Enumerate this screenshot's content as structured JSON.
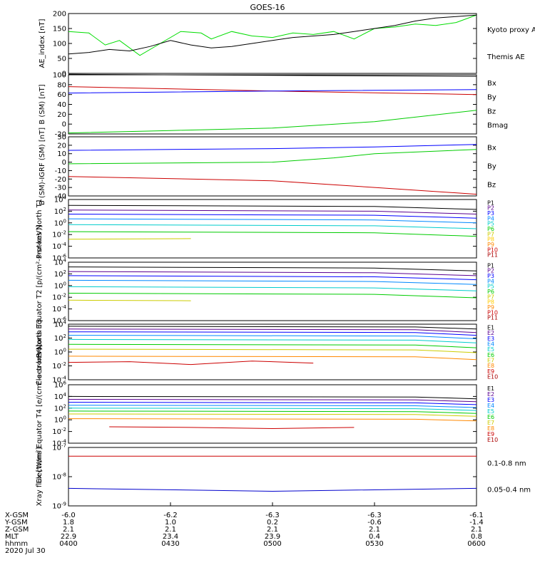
{
  "title": "GOES-16",
  "footer": {
    "rows": [
      {
        "label": "X-GSM",
        "values": [
          "-6.0",
          "-6.2",
          "-6.3",
          "-6.3",
          "-6.1"
        ]
      },
      {
        "label": "Y-GSM",
        "values": [
          "1.8",
          "1.0",
          "0.2",
          "-0.6",
          "-1.4"
        ]
      },
      {
        "label": "Z-GSM",
        "values": [
          "2.1",
          "2.1",
          "2.1",
          "2.1",
          "2.1"
        ]
      },
      {
        "label": "MLT",
        "values": [
          "22.9",
          "23.4",
          "23.9",
          "0.4",
          "0.8"
        ]
      },
      {
        "label": "hhmm",
        "values": [
          "0400",
          "0430",
          "0500",
          "0530",
          "0600"
        ]
      }
    ],
    "date": "2020 Jul 30"
  },
  "chart_data": [
    {
      "type": "line",
      "ylabel": "AE_index [nT]",
      "ylim": [
        0,
        200
      ],
      "yticks": [
        "0",
        "50",
        "100",
        "150",
        "200"
      ],
      "legend": [
        {
          "label": "Kyoto proxy AE",
          "color": "#00dd00"
        },
        {
          "label": "Themis AE",
          "color": "#000000"
        }
      ],
      "series": [
        {
          "name": "Kyoto proxy AE",
          "color": "#00dd00",
          "x": [
            0,
            10,
            18,
            25,
            35,
            45,
            55,
            65,
            70,
            80,
            90,
            100,
            110,
            120,
            130,
            140,
            150,
            160,
            170,
            180,
            190,
            200
          ],
          "y": [
            140,
            135,
            95,
            110,
            60,
            100,
            140,
            135,
            115,
            140,
            125,
            120,
            135,
            130,
            140,
            115,
            150,
            155,
            165,
            160,
            170,
            195
          ]
        },
        {
          "name": "Themis AE",
          "color": "#000000",
          "x": [
            0,
            10,
            20,
            30,
            40,
            50,
            60,
            70,
            80,
            90,
            100,
            110,
            120,
            130,
            140,
            150,
            160,
            170,
            180,
            190,
            200
          ],
          "y": [
            65,
            70,
            80,
            75,
            90,
            110,
            95,
            85,
            90,
            100,
            110,
            120,
            125,
            130,
            140,
            150,
            160,
            175,
            185,
            190,
            195
          ]
        }
      ]
    },
    {
      "type": "line",
      "ylabel": "B (SM) [nT]",
      "ylim": [
        -20,
        100
      ],
      "yticks": [
        "-20",
        "0",
        "20",
        "40",
        "60",
        "80",
        "100"
      ],
      "legend": [
        {
          "label": "Bx",
          "color": "#0000ff"
        },
        {
          "label": "By",
          "color": "#00cc00"
        },
        {
          "label": "Bz",
          "color": "#cc0000"
        },
        {
          "label": "Bmag",
          "color": "#000000"
        }
      ],
      "series": [
        {
          "name": "Bmag",
          "color": "#000000",
          "x": [
            0,
            100,
            200
          ],
          "y": [
            101,
            99,
            97
          ]
        },
        {
          "name": "Bz",
          "color": "#cc0000",
          "x": [
            0,
            100,
            200
          ],
          "y": [
            76,
            67,
            60
          ]
        },
        {
          "name": "Bx",
          "color": "#0000ff",
          "x": [
            0,
            100,
            200
          ],
          "y": [
            63,
            67,
            70
          ]
        },
        {
          "name": "By",
          "color": "#00cc00",
          "x": [
            0,
            50,
            100,
            150,
            200
          ],
          "y": [
            -18,
            -13,
            -8,
            5,
            28
          ]
        }
      ]
    },
    {
      "type": "line",
      "ylabel": "B (SM)-IGRF (SM) [nT]",
      "ylim": [
        -40,
        30
      ],
      "yticks": [
        "-40",
        "-30",
        "-20",
        "-10",
        "0",
        "10",
        "20",
        "30"
      ],
      "legend": [
        {
          "label": "Bx",
          "color": "#0000ff"
        },
        {
          "label": "By",
          "color": "#00cc00"
        },
        {
          "label": "Bz",
          "color": "#cc0000"
        }
      ],
      "series": [
        {
          "name": "Bx",
          "color": "#0000ff",
          "x": [
            0,
            100,
            150,
            200
          ],
          "y": [
            14,
            16,
            18,
            21
          ]
        },
        {
          "name": "By",
          "color": "#00cc00",
          "x": [
            0,
            100,
            130,
            150,
            200
          ],
          "y": [
            -2,
            0,
            5,
            10,
            15
          ]
        },
        {
          "name": "Bz",
          "color": "#cc0000",
          "x": [
            0,
            100,
            150,
            200
          ],
          "y": [
            -17,
            -22,
            -30,
            -38
          ]
        }
      ]
    },
    {
      "type": "line",
      "ylabel": "Protons North T1",
      "log": true,
      "ylim": [
        -6,
        4
      ],
      "yticks": [
        "10^-6",
        "10^-4",
        "10^-2",
        "10^0",
        "10^2",
        "10^4"
      ],
      "legend": [
        {
          "label": "P1",
          "color": "#000000"
        },
        {
          "label": "P2",
          "color": "#5a0090"
        },
        {
          "label": "P3",
          "color": "#0000ff"
        },
        {
          "label": "P4",
          "color": "#0088ff"
        },
        {
          "label": "P5",
          "color": "#00cccc"
        },
        {
          "label": "P6",
          "color": "#00cc00"
        },
        {
          "label": "P7",
          "color": "#cccc00"
        },
        {
          "label": "P8",
          "color": "#ffcc00"
        },
        {
          "label": "P9",
          "color": "#ff8800"
        },
        {
          "label": "P10",
          "color": "#cc0000"
        },
        {
          "label": "P11",
          "color": "#aa0000"
        }
      ],
      "series": [
        {
          "name": "P1",
          "color": "#000000",
          "x": [
            0,
            150,
            200
          ],
          "y": [
            3.0,
            2.8,
            2.3
          ]
        },
        {
          "name": "P2",
          "color": "#5a0090",
          "x": [
            0,
            150,
            200
          ],
          "y": [
            2.2,
            2.0,
            1.5
          ]
        },
        {
          "name": "P3",
          "color": "#0000ff",
          "x": [
            0,
            150,
            200
          ],
          "y": [
            1.5,
            1.3,
            0.8
          ]
        },
        {
          "name": "P4",
          "color": "#0088ff",
          "x": [
            0,
            150,
            200
          ],
          "y": [
            0.7,
            0.5,
            0.0
          ]
        },
        {
          "name": "P5",
          "color": "#00cccc",
          "x": [
            0,
            150,
            200
          ],
          "y": [
            -0.3,
            -0.5,
            -1.0
          ]
        },
        {
          "name": "P6",
          "color": "#00cc00",
          "x": [
            0,
            150,
            200
          ],
          "y": [
            -1.5,
            -1.7,
            -2.3
          ]
        },
        {
          "name": "P7",
          "color": "#cccc00",
          "x": [
            0,
            60
          ],
          "y": [
            -2.8,
            -2.7
          ]
        }
      ]
    },
    {
      "type": "line",
      "ylabel": "Protons Equator T2 [p/(cm²-s-sr-keV)]",
      "log": true,
      "ylim": [
        -6,
        4
      ],
      "yticks": [
        "10^-6",
        "10^-4",
        "10^-2",
        "10^0",
        "10^2",
        "10^4"
      ],
      "legend": [
        {
          "label": "P1",
          "color": "#000000"
        },
        {
          "label": "P2",
          "color": "#5a0090"
        },
        {
          "label": "P3",
          "color": "#0000ff"
        },
        {
          "label": "P4",
          "color": "#0088ff"
        },
        {
          "label": "P5",
          "color": "#00cccc"
        },
        {
          "label": "P6",
          "color": "#00cc00"
        },
        {
          "label": "P7",
          "color": "#cccc00"
        },
        {
          "label": "P8",
          "color": "#ffcc00"
        },
        {
          "label": "P9",
          "color": "#ff8800"
        },
        {
          "label": "P10",
          "color": "#cc0000"
        },
        {
          "label": "P11",
          "color": "#aa0000"
        }
      ],
      "series": [
        {
          "name": "P1",
          "color": "#000000",
          "x": [
            0,
            150,
            200
          ],
          "y": [
            3.2,
            3.0,
            2.5
          ]
        },
        {
          "name": "P2",
          "color": "#5a0090",
          "x": [
            0,
            150,
            200
          ],
          "y": [
            2.4,
            2.2,
            1.7
          ]
        },
        {
          "name": "P3",
          "color": "#0000ff",
          "x": [
            0,
            150,
            200
          ],
          "y": [
            1.7,
            1.5,
            1.0
          ]
        },
        {
          "name": "P4",
          "color": "#0088ff",
          "x": [
            0,
            150,
            200
          ],
          "y": [
            0.9,
            0.7,
            0.2
          ]
        },
        {
          "name": "P5",
          "color": "#00cccc",
          "x": [
            0,
            150,
            200
          ],
          "y": [
            -0.2,
            -0.4,
            -0.9
          ]
        },
        {
          "name": "P6",
          "color": "#00cc00",
          "x": [
            0,
            150,
            200
          ],
          "y": [
            -1.3,
            -1.5,
            -2.1
          ]
        },
        {
          "name": "P7",
          "color": "#cccc00",
          "x": [
            0,
            60
          ],
          "y": [
            -2.5,
            -2.6
          ]
        }
      ]
    },
    {
      "type": "line",
      "ylabel": "Electrons North T3",
      "log": true,
      "ylim": [
        -4,
        4
      ],
      "yticks": [
        "10^-4",
        "10^-2",
        "10^0",
        "10^2",
        "10^4"
      ],
      "legend": [
        {
          "label": "E1",
          "color": "#000000"
        },
        {
          "label": "E2",
          "color": "#5a0090"
        },
        {
          "label": "E3",
          "color": "#0000ff"
        },
        {
          "label": "E4",
          "color": "#0088ff"
        },
        {
          "label": "E5",
          "color": "#00cccc"
        },
        {
          "label": "E6",
          "color": "#00cc00"
        },
        {
          "label": "E7",
          "color": "#cccc00"
        },
        {
          "label": "E8",
          "color": "#ff8800"
        },
        {
          "label": "E9",
          "color": "#cc0000"
        },
        {
          "label": "E10",
          "color": "#aa0000"
        }
      ],
      "series": [
        {
          "name": "E1",
          "color": "#000000",
          "x": [
            0,
            170,
            200
          ],
          "y": [
            3.7,
            3.6,
            3.3
          ]
        },
        {
          "name": "E2",
          "color": "#5a0090",
          "x": [
            0,
            170,
            200
          ],
          "y": [
            3.3,
            3.2,
            2.8
          ]
        },
        {
          "name": "E3",
          "color": "#0000ff",
          "x": [
            0,
            170,
            200
          ],
          "y": [
            2.9,
            2.8,
            2.4
          ]
        },
        {
          "name": "E4",
          "color": "#0088ff",
          "x": [
            0,
            170,
            200
          ],
          "y": [
            2.4,
            2.3,
            1.9
          ]
        },
        {
          "name": "E5",
          "color": "#00cccc",
          "x": [
            0,
            170,
            200
          ],
          "y": [
            1.8,
            1.7,
            1.3
          ]
        },
        {
          "name": "E6",
          "color": "#00cc00",
          "x": [
            0,
            170,
            200
          ],
          "y": [
            1.1,
            1.0,
            0.6
          ]
        },
        {
          "name": "E7",
          "color": "#cccc00",
          "x": [
            0,
            170,
            200
          ],
          "y": [
            0.4,
            0.3,
            -0.1
          ]
        },
        {
          "name": "E8",
          "color": "#ff8800",
          "x": [
            0,
            170,
            200
          ],
          "y": [
            -0.6,
            -0.7,
            -1.1
          ]
        },
        {
          "name": "E9",
          "color": "#cc0000",
          "x": [
            0,
            30,
            60,
            90,
            120
          ],
          "y": [
            -1.5,
            -1.4,
            -1.8,
            -1.3,
            -1.6
          ]
        }
      ]
    },
    {
      "type": "line",
      "ylabel": "Electrons Equator T4 [e/(cm²-s-sr-keV)]",
      "log": true,
      "ylim": [
        -4,
        6
      ],
      "yticks": [
        "10^-4",
        "10^-2",
        "10^0",
        "10^2",
        "10^4",
        "10^6"
      ],
      "legend": [
        {
          "label": "E1",
          "color": "#000000"
        },
        {
          "label": "E2",
          "color": "#5a0090"
        },
        {
          "label": "E3",
          "color": "#0000ff"
        },
        {
          "label": "E4",
          "color": "#0088ff"
        },
        {
          "label": "E5",
          "color": "#00cccc"
        },
        {
          "label": "E6",
          "color": "#00cc00"
        },
        {
          "label": "E7",
          "color": "#cccc00"
        },
        {
          "label": "E8",
          "color": "#ff8800"
        },
        {
          "label": "E9",
          "color": "#cc0000"
        },
        {
          "label": "E10",
          "color": "#aa0000"
        }
      ],
      "series": [
        {
          "name": "E1",
          "color": "#000000",
          "x": [
            0,
            170,
            200
          ],
          "y": [
            4.0,
            3.9,
            3.6
          ]
        },
        {
          "name": "E2",
          "color": "#5a0090",
          "x": [
            0,
            170,
            200
          ],
          "y": [
            3.5,
            3.4,
            3.1
          ]
        },
        {
          "name": "E3",
          "color": "#0000ff",
          "x": [
            0,
            170,
            200
          ],
          "y": [
            3.0,
            2.9,
            2.6
          ]
        },
        {
          "name": "E4",
          "color": "#0088ff",
          "x": [
            0,
            170,
            200
          ],
          "y": [
            2.5,
            2.4,
            2.1
          ]
        },
        {
          "name": "E5",
          "color": "#00cccc",
          "x": [
            0,
            170,
            200
          ],
          "y": [
            2.0,
            1.9,
            1.6
          ]
        },
        {
          "name": "E6",
          "color": "#00cc00",
          "x": [
            0,
            170,
            200
          ],
          "y": [
            1.5,
            1.4,
            1.1
          ]
        },
        {
          "name": "E7",
          "color": "#cccc00",
          "x": [
            0,
            170,
            200
          ],
          "y": [
            1.0,
            0.9,
            0.6
          ]
        },
        {
          "name": "E8",
          "color": "#ff8800",
          "x": [
            0,
            170,
            200
          ],
          "y": [
            0.2,
            0.1,
            -0.2
          ]
        },
        {
          "name": "E9",
          "color": "#cc0000",
          "x": [
            20,
            60,
            100,
            140
          ],
          "y": [
            -1.2,
            -1.3,
            -1.5,
            -1.3
          ]
        }
      ]
    },
    {
      "type": "line",
      "ylabel": "Xray flux [W/m²]",
      "log": true,
      "ylim": [
        -9,
        -7
      ],
      "yticks": [
        "10^-9",
        "10^-8",
        "10^-7"
      ],
      "legend": [
        {
          "label": "0.1-0.8 nm",
          "color": "#cc0000"
        },
        {
          "label": "0.05-0.4 nm",
          "color": "#0000cc"
        }
      ],
      "series": [
        {
          "name": "0.1-0.8 nm",
          "color": "#cc0000",
          "x": [
            0,
            100,
            200
          ],
          "y": [
            -7.3,
            -7.3,
            -7.3
          ]
        },
        {
          "name": "0.05-0.4 nm",
          "color": "#0000cc",
          "x": [
            0,
            100,
            200
          ],
          "y": [
            -8.4,
            -8.5,
            -8.4
          ]
        }
      ]
    }
  ]
}
